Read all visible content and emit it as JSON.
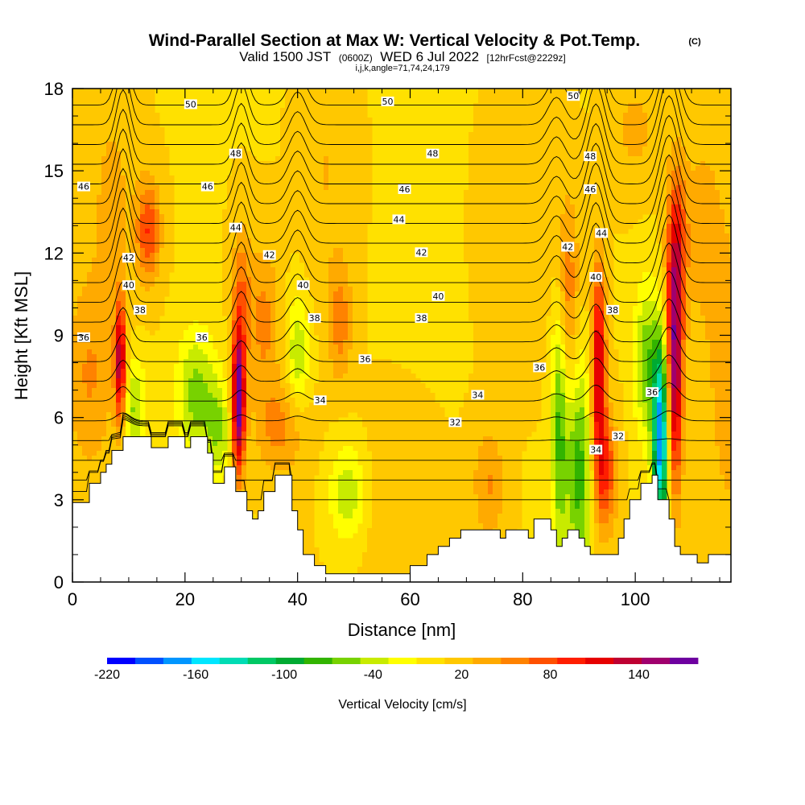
{
  "header": {
    "title": "Wind-Parallel Section at Max W: Vertical Velocity & Pot.Temp.",
    "title_unit": "(C)",
    "valid_prefix": "Valid 1500 JST",
    "valid_utc": "(0600Z)",
    "valid_date": "WED 6 Jul 2022",
    "forecast_info": "[12hrFcst@2229z]",
    "params": "i,j,k,angle=71,74,24,179"
  },
  "chart_data": {
    "type": "heatmap",
    "xlabel": "Distance [nm]",
    "ylabel": "Height [Kft MSL]",
    "xlim": [
      0,
      117
    ],
    "ylim": [
      0,
      18
    ],
    "x_ticks": [
      0,
      20,
      40,
      60,
      80,
      100
    ],
    "y_ticks": [
      0,
      3,
      6,
      9,
      12,
      15,
      18
    ],
    "colorbar": {
      "title": "Vertical Velocity [cm/s]",
      "range": [
        -220,
        180
      ],
      "tick_values": [
        -220,
        -160,
        -100,
        -40,
        20,
        80,
        140
      ],
      "colors": [
        "#0000ff",
        "#0050ff",
        "#0096ff",
        "#00e6ff",
        "#00dcb4",
        "#00c864",
        "#00aa32",
        "#32b400",
        "#78d200",
        "#c8eb00",
        "#ffff00",
        "#ffe100",
        "#ffc800",
        "#ffaa00",
        "#ff8200",
        "#ff5000",
        "#ff1e00",
        "#e60000",
        "#be0032",
        "#a0006e",
        "#6e00a0"
      ]
    },
    "terrain_top_kft": [
      [
        0,
        2.9
      ],
      [
        3,
        2.9
      ],
      [
        3,
        3.6
      ],
      [
        5,
        3.6
      ],
      [
        5,
        4.0
      ],
      [
        6,
        4.0
      ],
      [
        6,
        4.3
      ],
      [
        7,
        4.3
      ],
      [
        7,
        4.8
      ],
      [
        9,
        4.8
      ],
      [
        9,
        5.3
      ],
      [
        14,
        5.3
      ],
      [
        14,
        4.9
      ],
      [
        17,
        4.9
      ],
      [
        17,
        5.3
      ],
      [
        20,
        5.3
      ],
      [
        20,
        4.9
      ],
      [
        21,
        4.9
      ],
      [
        21,
        5.3
      ],
      [
        24,
        5.3
      ],
      [
        24,
        4.7
      ],
      [
        25,
        4.7
      ],
      [
        25,
        3.6
      ],
      [
        27,
        3.6
      ],
      [
        27,
        4.2
      ],
      [
        29,
        4.2
      ],
      [
        29,
        3.3
      ],
      [
        31,
        3.3
      ],
      [
        31,
        2.6
      ],
      [
        32,
        2.6
      ],
      [
        32,
        2.3
      ],
      [
        33,
        2.3
      ],
      [
        33,
        2.6
      ],
      [
        34,
        2.6
      ],
      [
        34,
        3.3
      ],
      [
        36,
        3.3
      ],
      [
        36,
        3.9
      ],
      [
        39,
        3.9
      ],
      [
        39,
        2.6
      ],
      [
        40,
        2.6
      ],
      [
        40,
        1.9
      ],
      [
        41,
        1.9
      ],
      [
        41,
        1.0
      ],
      [
        43,
        1.0
      ],
      [
        43,
        0.6
      ],
      [
        45,
        0.6
      ],
      [
        45,
        0.3
      ],
      [
        47,
        0.3
      ],
      [
        47,
        0.3
      ],
      [
        60,
        0.3
      ],
      [
        60,
        0.6
      ],
      [
        63,
        0.6
      ],
      [
        63,
        1.0
      ],
      [
        65,
        1.0
      ],
      [
        65,
        1.3
      ],
      [
        67,
        1.3
      ],
      [
        67,
        1.6
      ],
      [
        69,
        1.6
      ],
      [
        69,
        1.9
      ],
      [
        72,
        1.9
      ],
      [
        72,
        1.9
      ],
      [
        76,
        1.9
      ],
      [
        76,
        1.6
      ],
      [
        77,
        1.6
      ],
      [
        77,
        1.9
      ],
      [
        80,
        1.9
      ],
      [
        80,
        1.9
      ],
      [
        81,
        1.9
      ],
      [
        81,
        1.6
      ],
      [
        82,
        1.6
      ],
      [
        82,
        2.3
      ],
      [
        85,
        2.3
      ],
      [
        85,
        1.9
      ],
      [
        86,
        1.9
      ],
      [
        86,
        1.3
      ],
      [
        87,
        1.3
      ],
      [
        87,
        1.6
      ],
      [
        88,
        1.6
      ],
      [
        88,
        1.9
      ],
      [
        90,
        1.9
      ],
      [
        90,
        1.6
      ],
      [
        91,
        1.6
      ],
      [
        91,
        1.3
      ],
      [
        92,
        1.3
      ],
      [
        92,
        1.0
      ],
      [
        97,
        1.0
      ],
      [
        97,
        1.6
      ],
      [
        98,
        1.6
      ],
      [
        98,
        2.3
      ],
      [
        99,
        2.3
      ],
      [
        99,
        3.0
      ],
      [
        101,
        3.0
      ],
      [
        101,
        3.6
      ],
      [
        103,
        3.6
      ],
      [
        103,
        3.9
      ],
      [
        104,
        3.9
      ],
      [
        104,
        3.0
      ],
      [
        106,
        3.0
      ],
      [
        106,
        2.3
      ],
      [
        107,
        2.3
      ],
      [
        107,
        1.3
      ],
      [
        108,
        1.3
      ],
      [
        108,
        1.0
      ],
      [
        111,
        1.0
      ],
      [
        111,
        0.7
      ],
      [
        113,
        0.7
      ],
      [
        113,
        1.0
      ],
      [
        117,
        1.0
      ]
    ],
    "contour_labels": [
      {
        "text": "50",
        "x": 21,
        "y": 17.4
      },
      {
        "text": "50",
        "x": 56,
        "y": 17.5
      },
      {
        "text": "50",
        "x": 89,
        "y": 17.7
      },
      {
        "text": "48",
        "x": 29,
        "y": 15.6
      },
      {
        "text": "48",
        "x": 64,
        "y": 15.6
      },
      {
        "text": "48",
        "x": 92,
        "y": 15.5
      },
      {
        "text": "46",
        "x": 2,
        "y": 14.4
      },
      {
        "text": "46",
        "x": 24,
        "y": 14.4
      },
      {
        "text": "46",
        "x": 59,
        "y": 14.3
      },
      {
        "text": "46",
        "x": 92,
        "y": 14.3
      },
      {
        "text": "44",
        "x": 58,
        "y": 13.2
      },
      {
        "text": "44",
        "x": 29,
        "y": 12.9
      },
      {
        "text": "44",
        "x": 94,
        "y": 12.7
      },
      {
        "text": "42",
        "x": 10,
        "y": 11.8
      },
      {
        "text": "42",
        "x": 35,
        "y": 11.9
      },
      {
        "text": "42",
        "x": 62,
        "y": 12.0
      },
      {
        "text": "42",
        "x": 88,
        "y": 12.2
      },
      {
        "text": "40",
        "x": 10,
        "y": 10.8
      },
      {
        "text": "40",
        "x": 41,
        "y": 10.8
      },
      {
        "text": "40",
        "x": 65,
        "y": 10.4
      },
      {
        "text": "40",
        "x": 93,
        "y": 11.1
      },
      {
        "text": "38",
        "x": 12,
        "y": 9.9
      },
      {
        "text": "38",
        "x": 43,
        "y": 9.6
      },
      {
        "text": "38",
        "x": 62,
        "y": 9.6
      },
      {
        "text": "38",
        "x": 96,
        "y": 9.9
      },
      {
        "text": "36",
        "x": 2,
        "y": 8.9
      },
      {
        "text": "36",
        "x": 23,
        "y": 8.9
      },
      {
        "text": "36",
        "x": 52,
        "y": 8.1
      },
      {
        "text": "36",
        "x": 83,
        "y": 7.8
      },
      {
        "text": "36",
        "x": 103,
        "y": 6.9
      },
      {
        "text": "34",
        "x": 44,
        "y": 6.6
      },
      {
        "text": "34",
        "x": 72,
        "y": 6.8
      },
      {
        "text": "34",
        "x": 93,
        "y": 4.8
      },
      {
        "text": "32",
        "x": 68,
        "y": 5.8
      },
      {
        "text": "32",
        "x": 97,
        "y": 5.3
      }
    ]
  }
}
